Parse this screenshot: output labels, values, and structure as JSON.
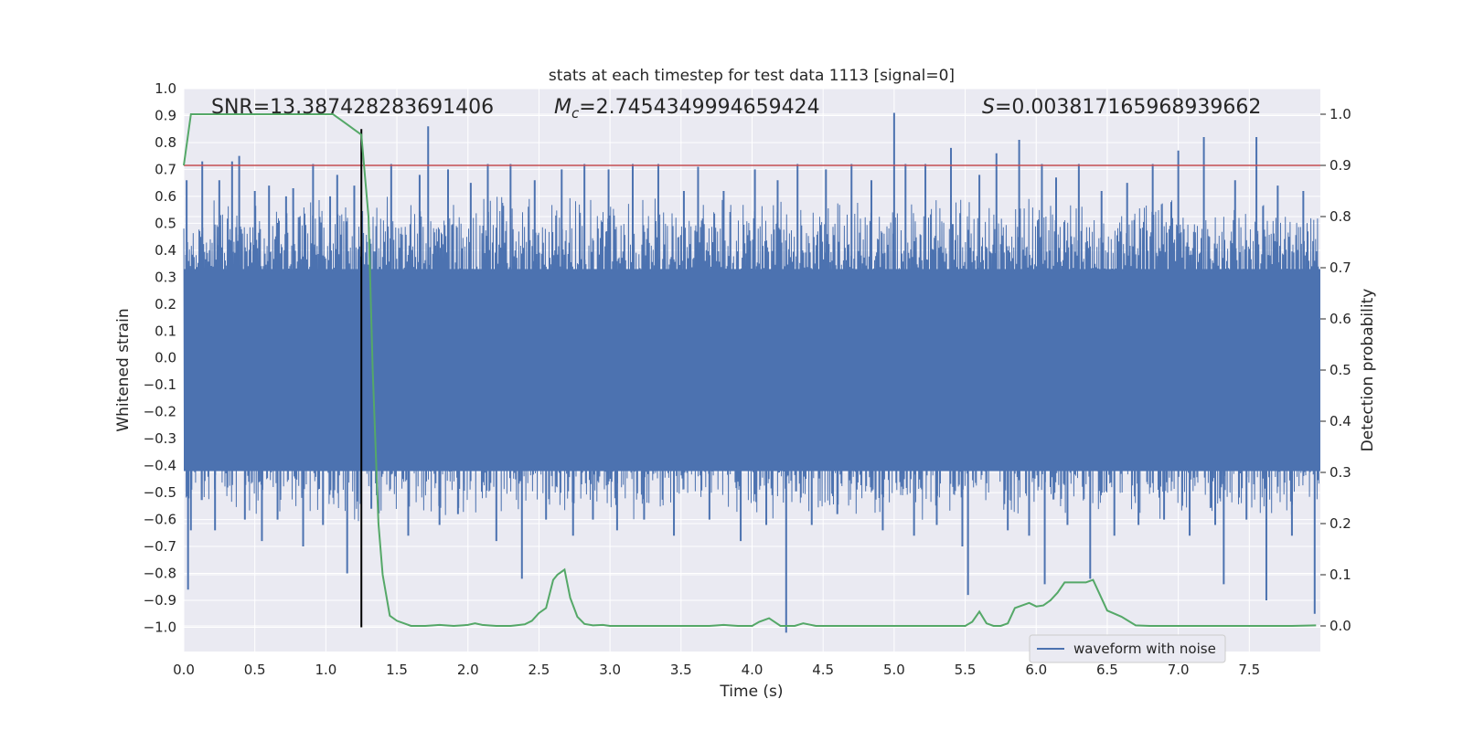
{
  "chart_data": {
    "type": "line",
    "title": "stats at each timestep for test data 1113 [signal=0]",
    "xlabel": "Time (s)",
    "ylabel_left": "Whitened strain",
    "ylabel_right": "Detection probability",
    "xlim": [
      0,
      8
    ],
    "ylim_left": [
      -1.09,
      1.0
    ],
    "ylim_right": [
      -0.05,
      1.05
    ],
    "x_ticks": [
      "0.0",
      "0.5",
      "1.0",
      "1.5",
      "2.0",
      "2.5",
      "3.0",
      "3.5",
      "4.0",
      "4.5",
      "5.0",
      "5.5",
      "6.0",
      "6.5",
      "7.0",
      "7.5"
    ],
    "x_tick_values": [
      0,
      0.5,
      1,
      1.5,
      2,
      2.5,
      3,
      3.5,
      4,
      4.5,
      5,
      5.5,
      6,
      6.5,
      7,
      7.5
    ],
    "y_ticks_left": [
      "1.0",
      "0.9",
      "0.8",
      "0.7",
      "0.6",
      "0.5",
      "0.4",
      "0.3",
      "0.2",
      "0.1",
      "0.0",
      "−0.1",
      "−0.2",
      "−0.3",
      "−0.4",
      "−0.5",
      "−0.6",
      "−0.7",
      "−0.8",
      "−0.9",
      "−1.0"
    ],
    "y_tick_values_left": [
      1.0,
      0.9,
      0.8,
      0.7,
      0.6,
      0.5,
      0.4,
      0.3,
      0.2,
      0.1,
      0.0,
      -0.1,
      -0.2,
      -0.3,
      -0.4,
      -0.5,
      -0.6,
      -0.7,
      -0.8,
      -0.9,
      -1.0
    ],
    "y_ticks_right": [
      "1.0",
      "0.9",
      "0.8",
      "0.7",
      "0.6",
      "0.5",
      "0.4",
      "0.3",
      "0.2",
      "0.1",
      "0.0"
    ],
    "y_tick_values_right": [
      1.0,
      0.9,
      0.8,
      0.7,
      0.6,
      0.5,
      0.4,
      0.3,
      0.2,
      0.1,
      0.0
    ],
    "annotations": {
      "snr": "SNR=13.387428283691406",
      "mc_prefix": "M",
      "mc_sub": "c",
      "mc_value": "=2.7454349994659424",
      "s_prefix": "S",
      "s_value": "=0.003817165968939662"
    },
    "threshold_probability": 0.9,
    "vertical_marker": {
      "x": 1.25,
      "y_from": -1.0,
      "y_to": 0.85
    },
    "legend": {
      "label": "waveform with noise",
      "location": "lower-right"
    },
    "waveform": {
      "name": "waveform with noise",
      "color": "#4c72b0",
      "core_band": [
        -0.42,
        0.33
      ],
      "spikes": [
        [
          0.02,
          0.66
        ],
        [
          0.03,
          -0.86
        ],
        [
          0.05,
          -0.64
        ],
        [
          0.13,
          0.73
        ],
        [
          0.22,
          -0.64
        ],
        [
          0.25,
          0.66
        ],
        [
          0.34,
          0.73
        ],
        [
          0.39,
          0.75
        ],
        [
          0.43,
          -0.6
        ],
        [
          0.5,
          0.62
        ],
        [
          0.55,
          -0.68
        ],
        [
          0.6,
          0.64
        ],
        [
          0.66,
          -0.6
        ],
        [
          0.72,
          0.6
        ],
        [
          0.77,
          0.63
        ],
        [
          0.84,
          -0.7
        ],
        [
          0.91,
          0.72
        ],
        [
          0.98,
          -0.62
        ],
        [
          1.03,
          0.6
        ],
        [
          1.08,
          0.68
        ],
        [
          1.15,
          -0.8
        ],
        [
          1.2,
          0.64
        ],
        [
          1.22,
          -0.46
        ],
        [
          1.32,
          -0.56
        ],
        [
          1.46,
          0.72
        ],
        [
          1.58,
          -0.66
        ],
        [
          1.66,
          0.68
        ],
        [
          1.72,
          0.86
        ],
        [
          1.8,
          -0.62
        ],
        [
          1.86,
          0.7
        ],
        [
          1.93,
          -0.58
        ],
        [
          2.02,
          0.65
        ],
        [
          2.14,
          0.72
        ],
        [
          2.2,
          -0.68
        ],
        [
          2.3,
          0.72
        ],
        [
          2.38,
          -0.82
        ],
        [
          2.47,
          0.66
        ],
        [
          2.55,
          -0.6
        ],
        [
          2.66,
          0.7
        ],
        [
          2.74,
          -0.66
        ],
        [
          2.82,
          0.72
        ],
        [
          2.88,
          -0.6
        ],
        [
          2.99,
          0.7
        ],
        [
          3.05,
          -0.64
        ],
        [
          3.16,
          0.72
        ],
        [
          3.24,
          -0.6
        ],
        [
          3.34,
          0.72
        ],
        [
          3.45,
          -0.66
        ],
        [
          3.52,
          0.62
        ],
        [
          3.62,
          0.71
        ],
        [
          3.7,
          -0.6
        ],
        [
          3.8,
          0.62
        ],
        [
          3.92,
          -0.68
        ],
        [
          4.02,
          0.7
        ],
        [
          4.1,
          -0.62
        ],
        [
          4.18,
          0.66
        ],
        [
          4.24,
          -1.02
        ],
        [
          4.32,
          0.72
        ],
        [
          4.42,
          -0.62
        ],
        [
          4.52,
          0.7
        ],
        [
          4.6,
          -0.58
        ],
        [
          4.7,
          0.72
        ],
        [
          4.84,
          0.66
        ],
        [
          4.92,
          -0.64
        ],
        [
          5.0,
          0.91
        ],
        [
          5.08,
          0.72
        ],
        [
          5.14,
          -0.66
        ],
        [
          5.22,
          0.72
        ],
        [
          5.3,
          -0.62
        ],
        [
          5.4,
          0.78
        ],
        [
          5.48,
          -0.7
        ],
        [
          5.52,
          -0.88
        ],
        [
          5.6,
          0.68
        ],
        [
          5.72,
          0.76
        ],
        [
          5.8,
          -0.64
        ],
        [
          5.88,
          0.81
        ],
        [
          5.95,
          -0.66
        ],
        [
          6.04,
          0.72
        ],
        [
          6.06,
          -0.84
        ],
        [
          6.14,
          0.67
        ],
        [
          6.22,
          -0.62
        ],
        [
          6.3,
          0.72
        ],
        [
          6.38,
          -0.82
        ],
        [
          6.46,
          0.62
        ],
        [
          6.55,
          -0.66
        ],
        [
          6.64,
          0.65
        ],
        [
          6.72,
          -0.62
        ],
        [
          6.82,
          0.72
        ],
        [
          6.9,
          -0.6
        ],
        [
          7.0,
          0.77
        ],
        [
          7.08,
          -0.66
        ],
        [
          7.18,
          0.82
        ],
        [
          7.26,
          -0.62
        ],
        [
          7.32,
          -0.84
        ],
        [
          7.4,
          0.66
        ],
        [
          7.48,
          -0.6
        ],
        [
          7.55,
          0.82
        ],
        [
          7.62,
          -0.9
        ],
        [
          7.7,
          0.64
        ],
        [
          7.8,
          -0.66
        ],
        [
          7.88,
          0.62
        ],
        [
          7.96,
          -0.95
        ]
      ]
    },
    "probability": {
      "name": "detection probability",
      "color": "#55a868",
      "x": [
        0.0,
        0.05,
        0.1,
        0.2,
        0.3,
        0.4,
        0.5,
        0.6,
        0.7,
        0.8,
        0.9,
        1.0,
        1.05,
        1.1,
        1.15,
        1.2,
        1.25,
        1.3,
        1.33,
        1.37,
        1.4,
        1.45,
        1.5,
        1.6,
        1.7,
        1.8,
        1.9,
        2.0,
        2.05,
        2.1,
        2.2,
        2.3,
        2.4,
        2.45,
        2.5,
        2.55,
        2.6,
        2.63,
        2.68,
        2.72,
        2.77,
        2.82,
        2.88,
        2.95,
        3.0,
        3.1,
        3.2,
        3.3,
        3.4,
        3.5,
        3.6,
        3.7,
        3.8,
        3.9,
        4.0,
        4.05,
        4.12,
        4.2,
        4.3,
        4.36,
        4.45,
        4.55,
        4.65,
        4.8,
        4.95,
        5.1,
        5.25,
        5.4,
        5.5,
        5.55,
        5.6,
        5.65,
        5.7,
        5.75,
        5.8,
        5.85,
        5.95,
        6.0,
        6.05,
        6.1,
        6.15,
        6.2,
        6.25,
        6.35,
        6.4,
        6.5,
        6.6,
        6.7,
        6.8,
        7.0,
        7.2,
        7.4,
        7.6,
        7.8,
        7.97
      ],
      "values": [
        0.9,
        1.0,
        1.0,
        1.0,
        1.0,
        1.0,
        1.0,
        1.0,
        1.0,
        1.0,
        1.0,
        1.0,
        1.0,
        0.99,
        0.98,
        0.97,
        0.96,
        0.8,
        0.5,
        0.2,
        0.1,
        0.02,
        0.01,
        0.0,
        0.0,
        0.002,
        0.0,
        0.002,
        0.005,
        0.002,
        0.0,
        0.0,
        0.003,
        0.01,
        0.025,
        0.035,
        0.09,
        0.1,
        0.11,
        0.055,
        0.018,
        0.004,
        0.001,
        0.002,
        0.0,
        0.0,
        0.0,
        0.0,
        0.0,
        0.0,
        0.0,
        0.0,
        0.002,
        0.0,
        0.0,
        0.008,
        0.015,
        0.0,
        0.0,
        0.005,
        0.0,
        0.0,
        0.0,
        0.0,
        0.0,
        0.0,
        0.0,
        0.0,
        0.0,
        0.008,
        0.028,
        0.005,
        0.0,
        0.0,
        0.005,
        0.035,
        0.045,
        0.038,
        0.04,
        0.05,
        0.065,
        0.085,
        0.085,
        0.085,
        0.09,
        0.03,
        0.018,
        0.001,
        0.0,
        0.0,
        0.0,
        0.0,
        0.0,
        0.0,
        0.001
      ]
    },
    "colors": {
      "background": "#eaeaf2",
      "grid": "#ffffff",
      "threshold": "#c44e52",
      "marker": "#000000",
      "text": "#262626"
    }
  }
}
